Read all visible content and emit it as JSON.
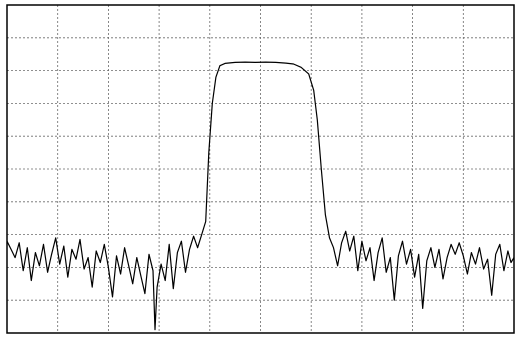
{
  "chart_data": {
    "type": "line",
    "title": "",
    "xlabel": "",
    "ylabel": "",
    "grid": true,
    "grid_divisions": {
      "x": 10,
      "y": 10
    },
    "xlim": [
      0,
      10
    ],
    "ylim": [
      0,
      10
    ],
    "colors": {
      "trace": "#000000",
      "grid": "#6a6a6a",
      "frame": "#000000",
      "background": "#ffffff"
    },
    "series": [
      {
        "values": [
          [
            0.0,
            2.8
          ],
          [
            0.08,
            2.55
          ],
          [
            0.16,
            2.3
          ],
          [
            0.24,
            2.75
          ],
          [
            0.32,
            1.9
          ],
          [
            0.4,
            2.6
          ],
          [
            0.48,
            1.6
          ],
          [
            0.56,
            2.45
          ],
          [
            0.64,
            2.05
          ],
          [
            0.72,
            2.7
          ],
          [
            0.8,
            1.85
          ],
          [
            0.88,
            2.4
          ],
          [
            0.96,
            2.9
          ],
          [
            1.04,
            2.1
          ],
          [
            1.12,
            2.65
          ],
          [
            1.2,
            1.7
          ],
          [
            1.28,
            2.55
          ],
          [
            1.36,
            2.25
          ],
          [
            1.44,
            2.85
          ],
          [
            1.52,
            1.95
          ],
          [
            1.6,
            2.3
          ],
          [
            1.68,
            1.4
          ],
          [
            1.76,
            2.5
          ],
          [
            1.84,
            2.15
          ],
          [
            1.92,
            2.7
          ],
          [
            2.0,
            2.0
          ],
          [
            2.08,
            1.1
          ],
          [
            2.16,
            2.35
          ],
          [
            2.24,
            1.8
          ],
          [
            2.32,
            2.6
          ],
          [
            2.4,
            2.05
          ],
          [
            2.48,
            1.5
          ],
          [
            2.56,
            2.3
          ],
          [
            2.64,
            1.75
          ],
          [
            2.72,
            1.2
          ],
          [
            2.8,
            2.4
          ],
          [
            2.88,
            1.9
          ],
          [
            2.92,
            0.1
          ],
          [
            2.96,
            1.4
          ],
          [
            3.04,
            2.1
          ],
          [
            3.12,
            1.6
          ],
          [
            3.2,
            2.7
          ],
          [
            3.28,
            1.35
          ],
          [
            3.36,
            2.45
          ],
          [
            3.44,
            2.8
          ],
          [
            3.52,
            1.85
          ],
          [
            3.6,
            2.55
          ],
          [
            3.68,
            2.95
          ],
          [
            3.76,
            2.6
          ],
          [
            3.84,
            3.0
          ],
          [
            3.92,
            3.4
          ],
          [
            3.98,
            5.5
          ],
          [
            4.05,
            7.0
          ],
          [
            4.12,
            7.8
          ],
          [
            4.2,
            8.15
          ],
          [
            4.3,
            8.22
          ],
          [
            4.5,
            8.25
          ],
          [
            4.7,
            8.26
          ],
          [
            4.9,
            8.25
          ],
          [
            5.1,
            8.26
          ],
          [
            5.3,
            8.25
          ],
          [
            5.5,
            8.23
          ],
          [
            5.65,
            8.2
          ],
          [
            5.8,
            8.1
          ],
          [
            5.95,
            7.9
          ],
          [
            6.05,
            7.4
          ],
          [
            6.12,
            6.5
          ],
          [
            6.2,
            5.0
          ],
          [
            6.28,
            3.6
          ],
          [
            6.36,
            2.9
          ],
          [
            6.44,
            2.6
          ],
          [
            6.52,
            2.05
          ],
          [
            6.6,
            2.75
          ],
          [
            6.68,
            3.1
          ],
          [
            6.76,
            2.5
          ],
          [
            6.84,
            2.95
          ],
          [
            6.92,
            1.9
          ],
          [
            7.0,
            2.8
          ],
          [
            7.08,
            2.2
          ],
          [
            7.16,
            2.6
          ],
          [
            7.24,
            1.6
          ],
          [
            7.32,
            2.45
          ],
          [
            7.4,
            2.9
          ],
          [
            7.48,
            1.85
          ],
          [
            7.56,
            2.3
          ],
          [
            7.64,
            1.0
          ],
          [
            7.72,
            2.35
          ],
          [
            7.8,
            2.8
          ],
          [
            7.88,
            2.1
          ],
          [
            7.96,
            2.55
          ],
          [
            8.04,
            1.7
          ],
          [
            8.12,
            2.4
          ],
          [
            8.2,
            0.75
          ],
          [
            8.28,
            2.2
          ],
          [
            8.36,
            2.6
          ],
          [
            8.44,
            2.0
          ],
          [
            8.52,
            2.55
          ],
          [
            8.6,
            1.65
          ],
          [
            8.68,
            2.3
          ],
          [
            8.76,
            2.7
          ],
          [
            8.84,
            2.4
          ],
          [
            8.92,
            2.75
          ],
          [
            9.0,
            2.35
          ],
          [
            9.08,
            1.8
          ],
          [
            9.16,
            2.45
          ],
          [
            9.24,
            2.1
          ],
          [
            9.32,
            2.6
          ],
          [
            9.4,
            1.95
          ],
          [
            9.48,
            2.25
          ],
          [
            9.56,
            1.15
          ],
          [
            9.64,
            2.4
          ],
          [
            9.72,
            2.7
          ],
          [
            9.8,
            1.9
          ],
          [
            9.88,
            2.5
          ],
          [
            9.94,
            2.15
          ],
          [
            10.0,
            2.3
          ]
        ]
      }
    ]
  }
}
